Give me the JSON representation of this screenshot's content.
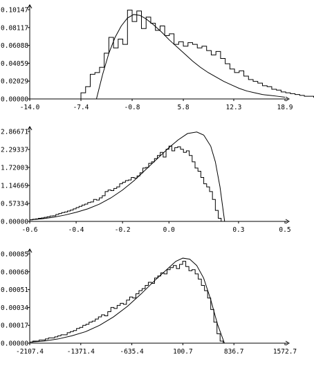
{
  "chart_data": [
    {
      "type": "histogram+line",
      "title": "",
      "xlabel": "",
      "ylabel": "",
      "x_ticks": [
        -14.0,
        -7.4,
        -0.8,
        5.8,
        12.3,
        18.9
      ],
      "x_tick_labels": [
        "-14.0",
        "-7.4",
        "-0.8",
        "5.8",
        "12.3",
        "18.9"
      ],
      "y_ticks": [
        0.0,
        0.02029,
        0.04059,
        0.06088,
        0.08117,
        0.10147
      ],
      "y_tick_labels": [
        "0.00000",
        "0.02029",
        "0.04059",
        "0.06088",
        "0.08117",
        "0.10147"
      ],
      "xlim": [
        -14.0,
        18.9
      ],
      "ylim": [
        0.0,
        0.10147
      ],
      "series": [
        {
          "kind": "histogram",
          "bin_start": -7.4,
          "bin_width": 0.6,
          "values": [
            0.007,
            0.014,
            0.028,
            0.03,
            0.036,
            0.052,
            0.07,
            0.058,
            0.068,
            0.062,
            0.101,
            0.088,
            0.1,
            0.08,
            0.093,
            0.086,
            0.078,
            0.083,
            0.072,
            0.074,
            0.062,
            0.065,
            0.06,
            0.064,
            0.062,
            0.058,
            0.06,
            0.055,
            0.05,
            0.054,
            0.046,
            0.04,
            0.034,
            0.03,
            0.032,
            0.026,
            0.022,
            0.02,
            0.018,
            0.015,
            0.014,
            0.011,
            0.01,
            0.008,
            0.007,
            0.006,
            0.005,
            0.004,
            0.003,
            0.003,
            0.002,
            0.002,
            0.002,
            0.001,
            0.001
          ]
        },
        {
          "kind": "line",
          "x": [
            -5.4,
            -4.6,
            -3.8,
            -3.0,
            -2.2,
            -1.4,
            -0.6,
            0.2,
            1.0,
            2.0,
            3.0,
            4.0,
            5.0,
            6.0,
            7.0,
            8.0,
            9.0,
            10.0,
            11.0,
            12.0,
            13.0,
            14.0,
            15.0,
            16.0,
            17.0,
            18.0,
            18.9
          ],
          "y": [
            0.0,
            0.028,
            0.052,
            0.07,
            0.083,
            0.092,
            0.096,
            0.095,
            0.091,
            0.084,
            0.076,
            0.067,
            0.059,
            0.051,
            0.043,
            0.036,
            0.03,
            0.025,
            0.02,
            0.016,
            0.012,
            0.009,
            0.007,
            0.005,
            0.004,
            0.003,
            0.002
          ]
        }
      ]
    },
    {
      "type": "histogram+line",
      "title": "",
      "xlabel": "",
      "ylabel": "",
      "x_ticks": [
        -0.6,
        -0.4,
        -0.2,
        0.0,
        0.3,
        0.5
      ],
      "x_tick_labels": [
        "-0.6",
        "-0.4",
        "-0.2",
        "0.0",
        "0.3",
        "0.5"
      ],
      "y_ticks": [
        0.0,
        0.57334,
        1.14669,
        1.72003,
        2.29337,
        2.86671
      ],
      "y_tick_labels": [
        "0.00000",
        "0.57334",
        "1.14669",
        "1.72003",
        "2.29337",
        "2.86671"
      ],
      "xlim": [
        -0.6,
        0.5
      ],
      "ylim": [
        0.0,
        2.86671
      ],
      "series": [
        {
          "kind": "histogram",
          "bin_start": -0.6,
          "bin_width": 0.0125,
          "values": [
            0.05,
            0.07,
            0.08,
            0.1,
            0.11,
            0.13,
            0.15,
            0.17,
            0.18,
            0.22,
            0.25,
            0.28,
            0.3,
            0.33,
            0.36,
            0.4,
            0.44,
            0.48,
            0.52,
            0.55,
            0.6,
            0.62,
            0.7,
            0.68,
            0.75,
            0.82,
            0.95,
            1.0,
            0.98,
            1.05,
            1.1,
            1.2,
            1.25,
            1.3,
            1.32,
            1.4,
            1.38,
            1.45,
            1.55,
            1.7,
            1.72,
            1.85,
            1.9,
            2.0,
            2.1,
            2.2,
            2.05,
            2.3,
            2.4,
            2.25,
            2.35,
            2.38,
            2.3,
            2.2,
            2.25,
            2.1,
            1.9,
            1.7,
            1.6,
            1.4,
            1.2,
            1.1,
            0.95,
            0.7,
            0.35,
            0.1,
            0.0
          ]
        },
        {
          "kind": "line",
          "x": [
            -0.6,
            -0.55,
            -0.5,
            -0.45,
            -0.4,
            -0.35,
            -0.3,
            -0.25,
            -0.2,
            -0.15,
            -0.1,
            -0.05,
            0.0,
            0.04,
            0.08,
            0.12,
            0.15,
            0.18,
            0.2,
            0.22,
            0.24
          ],
          "y": [
            0.05,
            0.08,
            0.13,
            0.2,
            0.29,
            0.4,
            0.55,
            0.75,
            1.0,
            1.3,
            1.65,
            2.0,
            2.35,
            2.6,
            2.8,
            2.85,
            2.75,
            2.4,
            1.9,
            1.1,
            0.0
          ]
        }
      ]
    },
    {
      "type": "histogram+line",
      "title": "",
      "xlabel": "",
      "ylabel": "",
      "x_ticks": [
        -2107.4,
        -1371.4,
        -635.4,
        100.7,
        836.7,
        1572.7
      ],
      "x_tick_labels": [
        "-2107.4",
        "-1371.4",
        "-635.4",
        "100.7",
        "836.7",
        "1572.7"
      ],
      "y_ticks": [
        0.0,
        0.00017,
        0.00034,
        0.00051,
        0.00068,
        0.00085
      ],
      "y_tick_labels": [
        "0.00000",
        "0.00017",
        "0.00034",
        "0.00051",
        "0.00068",
        "0.00085"
      ],
      "xlim": [
        -2107.4,
        1572.7
      ],
      "ylim": [
        0.0,
        0.00085
      ],
      "series": [
        {
          "kind": "histogram",
          "bin_start": -2107.4,
          "bin_width": 45.0,
          "values": [
            1e-05,
            2e-05,
            2e-05,
            3e-05,
            3e-05,
            4e-05,
            5e-05,
            5e-05,
            6e-05,
            7e-05,
            8e-05,
            8e-05,
            0.0001,
            0.00011,
            0.00012,
            0.00014,
            0.00015,
            0.00017,
            0.00018,
            0.0002,
            0.00021,
            0.00023,
            0.00025,
            0.00027,
            0.00026,
            0.0003,
            0.00034,
            0.00033,
            0.00036,
            0.00038,
            0.00037,
            0.00041,
            0.00044,
            0.00043,
            0.00047,
            0.0005,
            0.00052,
            0.00055,
            0.00058,
            0.00057,
            0.00062,
            0.00064,
            0.00067,
            0.00066,
            0.0007,
            0.00072,
            0.00074,
            0.00071,
            0.00075,
            0.00078,
            0.00073,
            0.00069,
            0.0007,
            0.00066,
            0.00061,
            0.00055,
            0.0005,
            0.00043,
            0.00032,
            0.0002,
            9e-05,
            2e-05,
            0.0
          ]
        },
        {
          "kind": "line",
          "x": [
            -2107.4,
            -1900,
            -1700,
            -1500,
            -1300,
            -1100,
            -900,
            -700,
            -500,
            -300,
            -100,
            0,
            100,
            200,
            300,
            400,
            500,
            600,
            700
          ],
          "y": [
            1e-05,
            2e-05,
            4e-05,
            7e-05,
            0.00011,
            0.00017,
            0.00025,
            0.00035,
            0.00047,
            0.0006,
            0.00072,
            0.00078,
            0.00081,
            0.0008,
            0.00074,
            0.00062,
            0.00042,
            0.00018,
            0.0
          ]
        }
      ]
    }
  ]
}
